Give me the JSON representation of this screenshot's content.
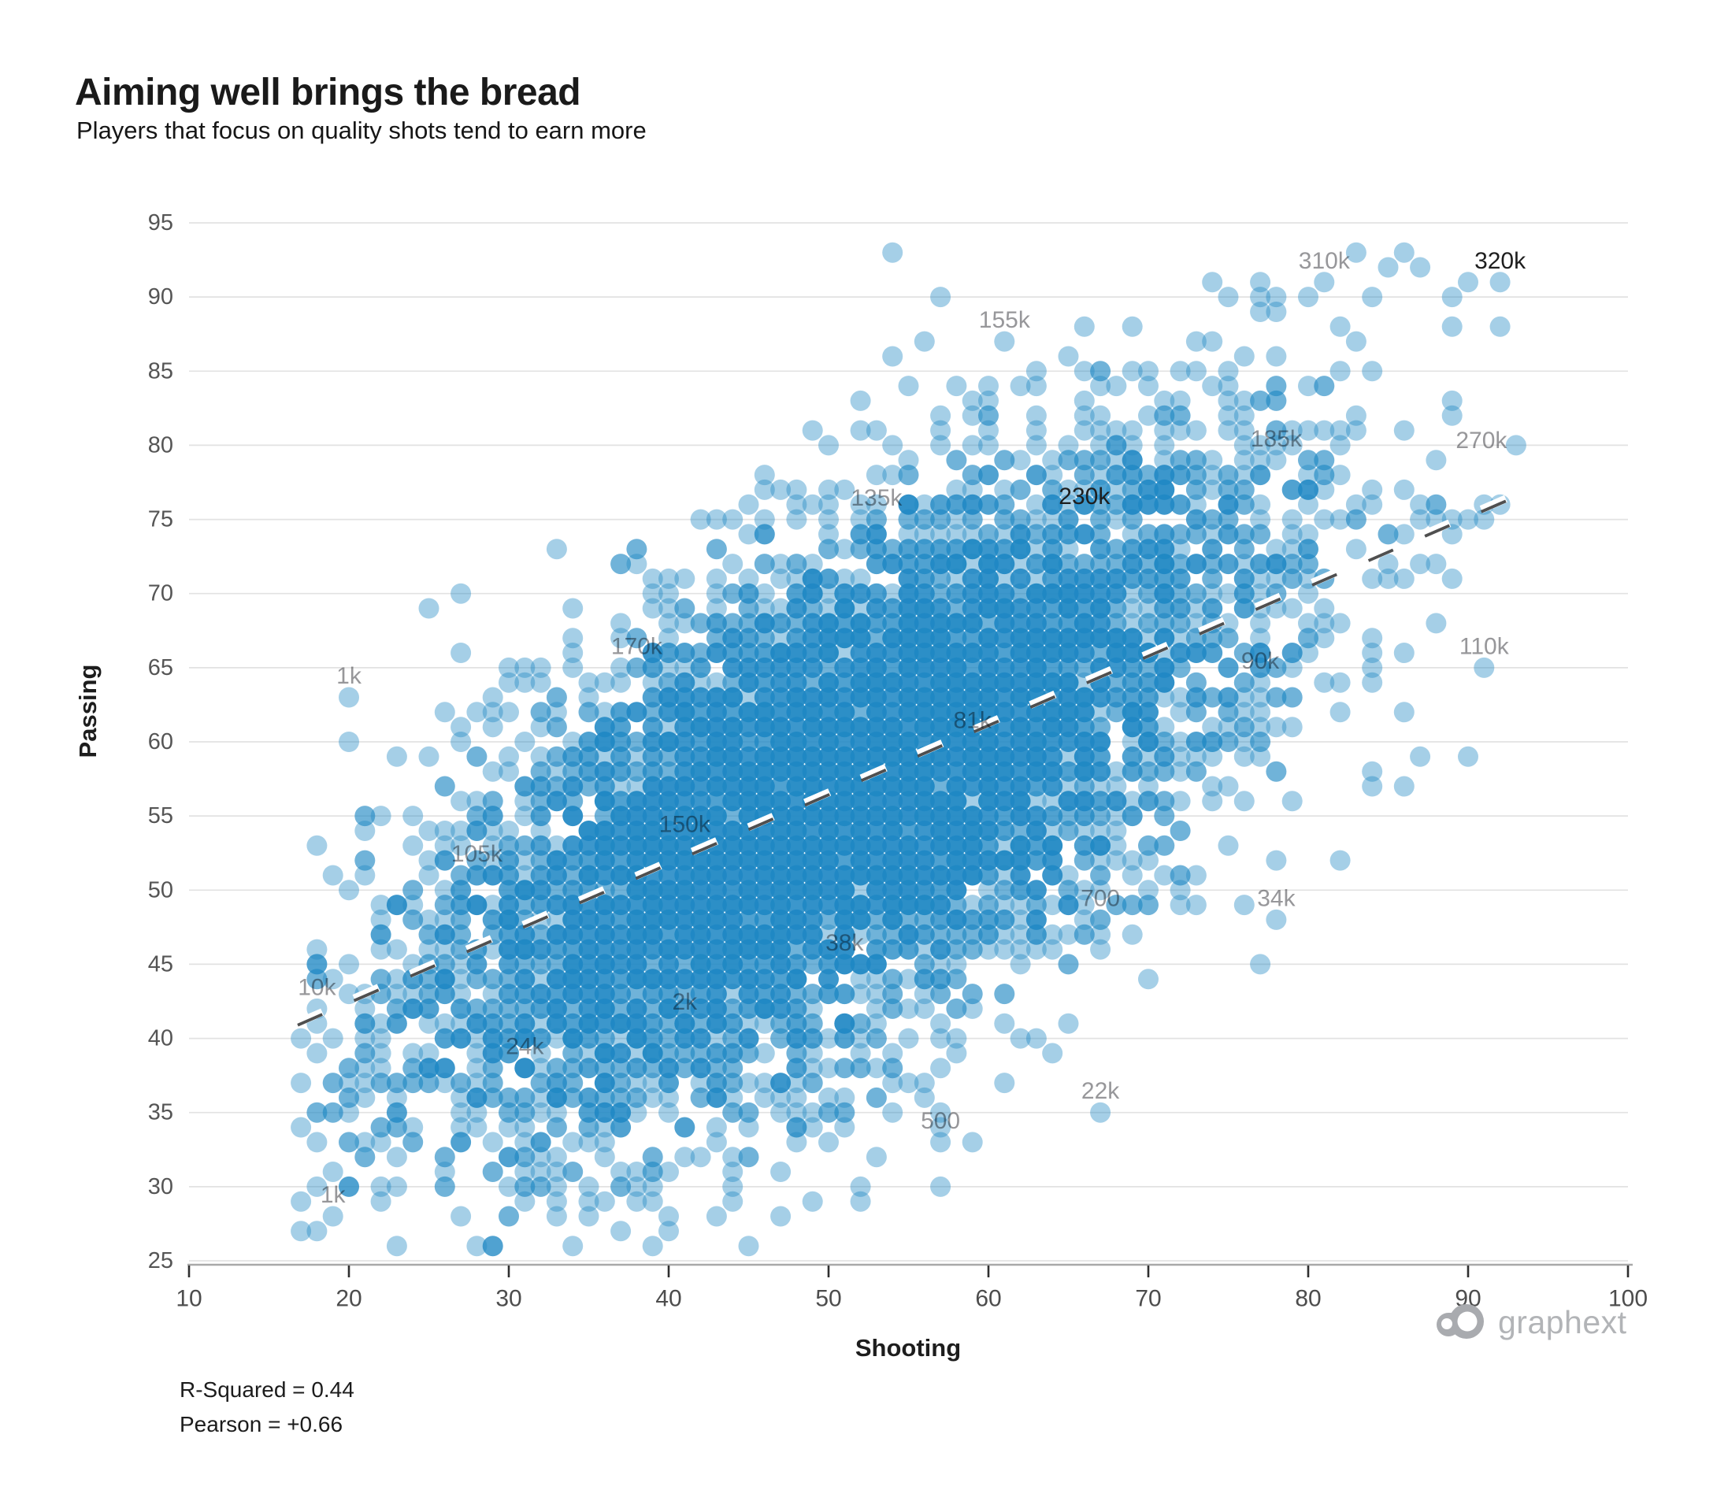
{
  "chart_data": {
    "type": "scatter",
    "title": "Aiming well brings the bread",
    "subtitle": "Players that focus on quality shots tend to earn more",
    "xlabel": "Shooting",
    "ylabel": "Passing",
    "xlim": [
      10,
      100
    ],
    "ylim": [
      25,
      95
    ],
    "x_ticks": [
      10,
      20,
      30,
      40,
      50,
      60,
      70,
      80,
      90,
      100
    ],
    "y_ticks": [
      25,
      30,
      35,
      40,
      45,
      50,
      55,
      60,
      65,
      70,
      75,
      80,
      85,
      90,
      95
    ],
    "grid": "horizontal-only",
    "legend": "none",
    "stats_lines": [
      "R-Squared = 0.44",
      "Pearson = +0.66"
    ],
    "trend_line": {
      "style": "dashed",
      "x1": 16.8,
      "y1": 41.0,
      "x2": 94.2,
      "y2": 77.2
    },
    "annotations": [
      {
        "label": "1k",
        "x": 20,
        "y": 63
      },
      {
        "label": "310k",
        "x": 81,
        "y": 91
      },
      {
        "label": "320k",
        "x": 92,
        "y": 91,
        "dark": true
      },
      {
        "label": "155k",
        "x": 61,
        "y": 87
      },
      {
        "label": "185k",
        "x": 78,
        "y": 80,
        "dy": -8
      },
      {
        "label": "270k",
        "x": 93,
        "y": 80,
        "dx": -44,
        "dy": -6
      },
      {
        "label": "135k",
        "x": 53,
        "y": 75
      },
      {
        "label": "230k",
        "x": 66,
        "y": 76,
        "dy": -10,
        "dark": true
      },
      {
        "label": "170k",
        "x": 38,
        "y": 65
      },
      {
        "label": "90k",
        "x": 77,
        "y": 64
      },
      {
        "label": "110k",
        "x": 91,
        "y": 65
      },
      {
        "label": "81k",
        "x": 59,
        "y": 60
      },
      {
        "label": "150k",
        "x": 41,
        "y": 53
      },
      {
        "label": "105k",
        "x": 28,
        "y": 51
      },
      {
        "label": "700",
        "x": 67,
        "y": 48
      },
      {
        "label": "34k",
        "x": 78,
        "y": 48
      },
      {
        "label": "38k",
        "x": 51,
        "y": 45
      },
      {
        "label": "10k",
        "x": 18,
        "y": 42
      },
      {
        "label": "2k",
        "x": 41,
        "y": 41
      },
      {
        "label": "24k",
        "x": 31,
        "y": 38
      },
      {
        "label": "22k",
        "x": 67,
        "y": 35
      },
      {
        "label": "500",
        "x": 57,
        "y": 33
      },
      {
        "label": "1k",
        "x": 19,
        "y": 28
      }
    ],
    "extra_points": [
      [
        86,
        93
      ],
      [
        84,
        90
      ],
      [
        89,
        83
      ],
      [
        91,
        75
      ],
      [
        33,
        73
      ],
      [
        27,
        70
      ],
      [
        38,
        29
      ],
      [
        44,
        29
      ],
      [
        47,
        31
      ],
      [
        52,
        30
      ],
      [
        57,
        30
      ],
      [
        84,
        57
      ],
      [
        88,
        68
      ],
      [
        90,
        59
      ],
      [
        20,
        50
      ],
      [
        18,
        39
      ]
    ],
    "point_cloud": {
      "description": "dense grid-snapped scatter of ~6500 players, positively correlated",
      "seed": 42,
      "n": 6500,
      "mean_x": 50.5,
      "mean_y": 56.5,
      "sd_x": 13.5,
      "sd_y": 11.5,
      "corr": 0.66,
      "snap": "integer-grid",
      "bounds": {
        "x": [
          17,
          95
        ],
        "y": [
          26,
          93
        ]
      }
    },
    "style": {
      "dot_color": "#1f88c4",
      "dot_alpha": 0.4,
      "max_alpha": 0.94,
      "dot_radius_px": 13,
      "label_color": "#97979a",
      "label_dark_color": "#1e1e1e",
      "grid_color": "#e2e2e2",
      "axis_color": "#a8a8a8",
      "tick_color": "#2f2f2f",
      "trend_color": "#4f4f4f"
    }
  },
  "branding": {
    "logo_text": "graphext"
  }
}
